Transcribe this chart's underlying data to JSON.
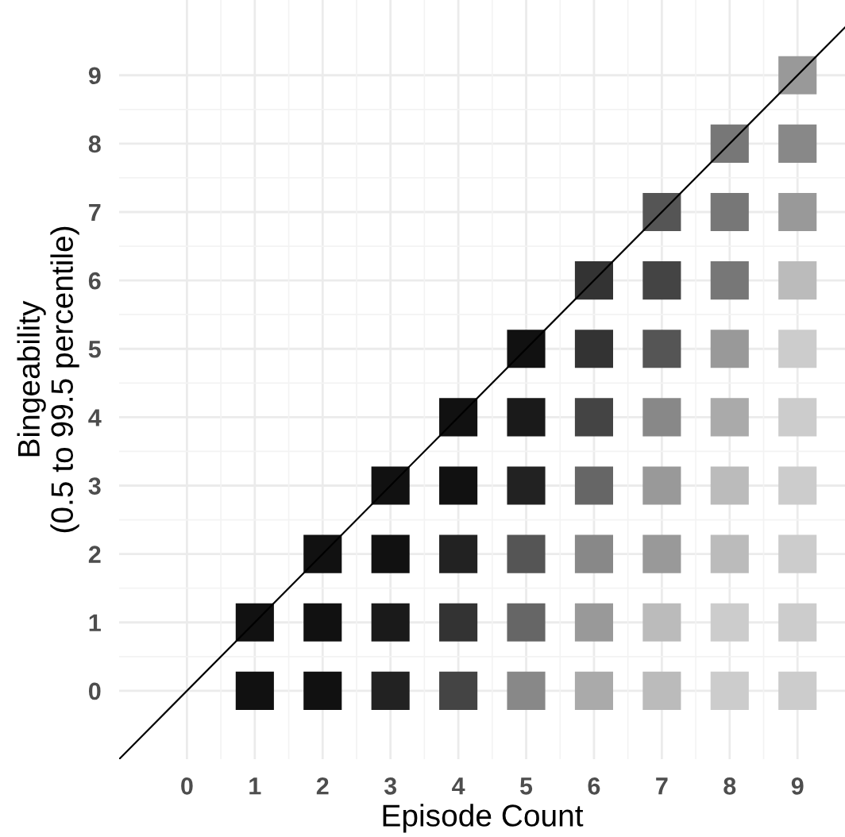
{
  "chart_data": {
    "type": "scatter",
    "xlabel": "Episode Count",
    "ylabel": "Bingeability\n(0.5 to 99.5 percentile)",
    "xlim": [
      -1,
      9.7
    ],
    "ylim": [
      -1,
      10.1
    ],
    "xticks": [
      0,
      1,
      2,
      3,
      4,
      5,
      6,
      7,
      8,
      9
    ],
    "yticks": [
      0,
      1,
      2,
      3,
      4,
      5,
      6,
      7,
      8,
      9
    ],
    "grid": true,
    "series": [
      {
        "marker": "square",
        "x": [
          1,
          2,
          3,
          4,
          5,
          6,
          7,
          8,
          9,
          1,
          2,
          3,
          4,
          5,
          6,
          7,
          8,
          9,
          2,
          3,
          4,
          5,
          6,
          7,
          8,
          9,
          3,
          4,
          5,
          6,
          7,
          8,
          9,
          4,
          5,
          6,
          7,
          8,
          9,
          5,
          6,
          7,
          8,
          9,
          6,
          7,
          8,
          9,
          7,
          8,
          9,
          8,
          9,
          9
        ],
        "values": [
          0,
          0,
          0,
          0,
          0,
          0,
          0,
          0,
          0,
          1,
          1,
          1,
          1,
          1,
          1,
          1,
          1,
          1,
          2,
          2,
          2,
          2,
          2,
          2,
          2,
          2,
          3,
          3,
          3,
          3,
          3,
          3,
          3,
          4,
          4,
          4,
          4,
          4,
          4,
          5,
          5,
          5,
          5,
          5,
          6,
          6,
          6,
          6,
          7,
          7,
          7,
          8,
          8,
          9
        ],
        "colors": [
          "#111111",
          "#111111",
          "#222222",
          "#444444",
          "#888888",
          "#aaaaaa",
          "#bbbbbb",
          "#cccccc",
          "#cccccc",
          "#111111",
          "#111111",
          "#1a1a1a",
          "#333333",
          "#666666",
          "#999999",
          "#bbbbbb",
          "#cccccc",
          "#cccccc",
          "#111111",
          "#111111",
          "#222222",
          "#555555",
          "#888888",
          "#999999",
          "#bbbbbb",
          "#cccccc",
          "#111111",
          "#111111",
          "#222222",
          "#666666",
          "#999999",
          "#bbbbbb",
          "#cccccc",
          "#111111",
          "#1a1a1a",
          "#444444",
          "#888888",
          "#aaaaaa",
          "#cccccc",
          "#111111",
          "#333333",
          "#555555",
          "#999999",
          "#cccccc",
          "#333333",
          "#444444",
          "#777777",
          "#bbbbbb",
          "#555555",
          "#777777",
          "#999999",
          "#777777",
          "#888888",
          "#999999"
        ]
      },
      {
        "type": "line",
        "x": [
          -1,
          9.7
        ],
        "values": [
          -1,
          9.7
        ],
        "color": "#000000"
      }
    ]
  }
}
